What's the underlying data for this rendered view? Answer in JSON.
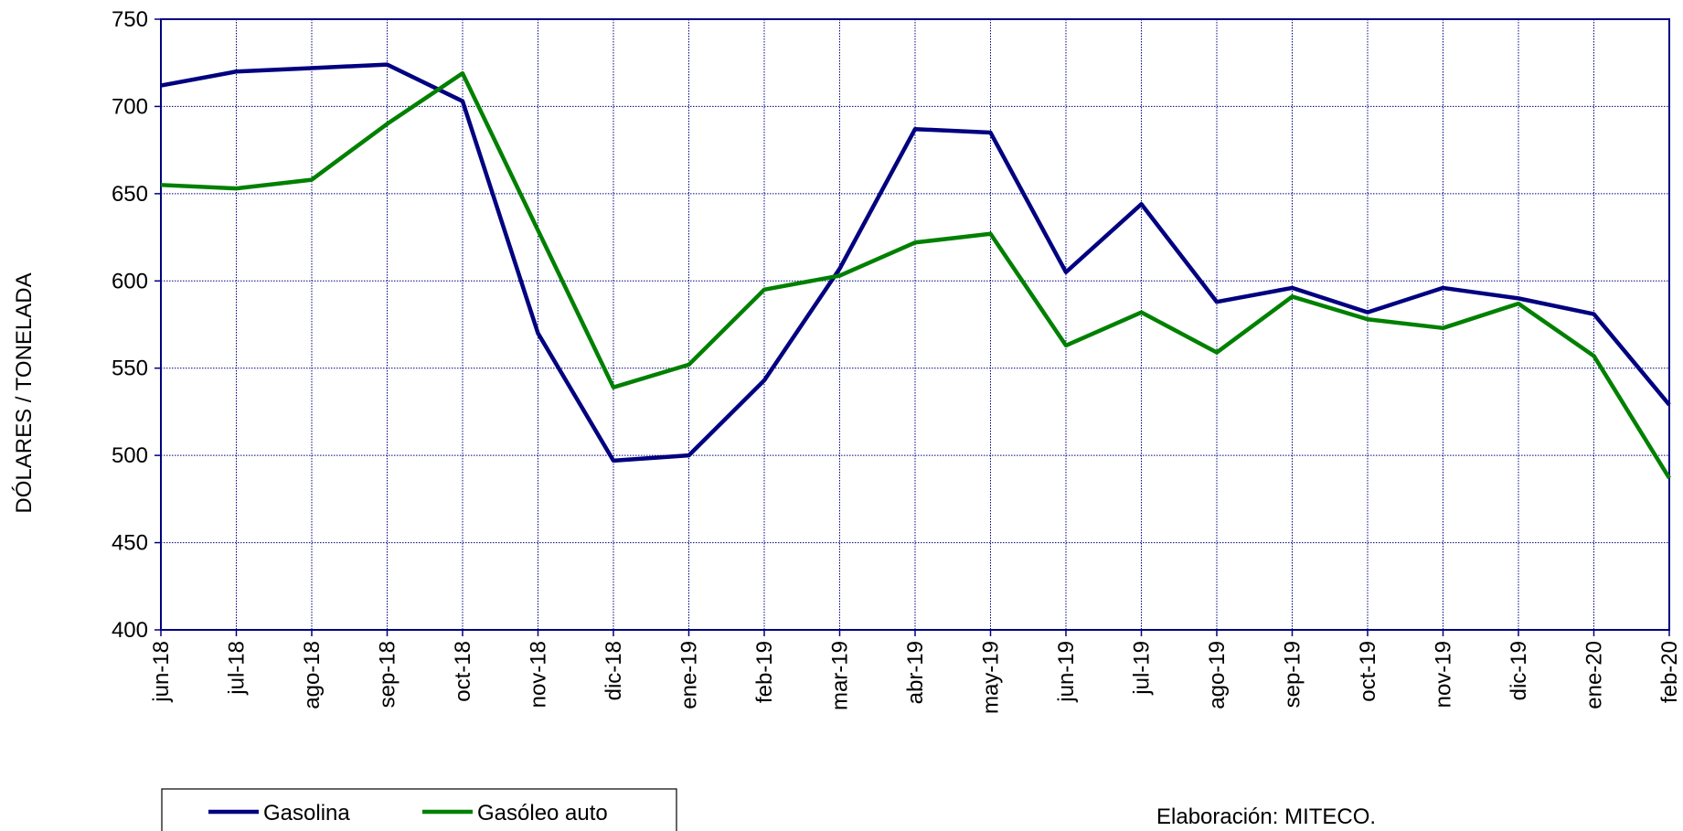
{
  "chart_data": {
    "type": "line",
    "y_label": "DÓLARES  / TONELADA",
    "categories": [
      "jun-18",
      "jul-18",
      "ago-18",
      "sep-18",
      "oct-18",
      "nov-18",
      "dic-18",
      "ene-19",
      "feb-19",
      "mar-19",
      "abr-19",
      "may-19",
      "jun-19",
      "jul-19",
      "ago-19",
      "sep-19",
      "oct-19",
      "nov-19",
      "dic-19",
      "ene-20",
      "feb-20"
    ],
    "series": [
      {
        "name": "Gasolina",
        "color": "#000080",
        "values": [
          712,
          720,
          722,
          724,
          703,
          570,
          497,
          500,
          543,
          607,
          687,
          685,
          605,
          644,
          588,
          596,
          582,
          596,
          590,
          581,
          529
        ]
      },
      {
        "name": "Gasóleo auto",
        "color": "#008000",
        "values": [
          655,
          653,
          658,
          690,
          719,
          629,
          539,
          552,
          595,
          603,
          622,
          627,
          563,
          582,
          559,
          591,
          578,
          573,
          587,
          557,
          487
        ]
      }
    ],
    "ylim": [
      400,
      750
    ],
    "yticks": [
      400,
      450,
      500,
      550,
      600,
      650,
      700,
      750
    ],
    "grid": true,
    "source": "Elaboración: MITECO."
  }
}
